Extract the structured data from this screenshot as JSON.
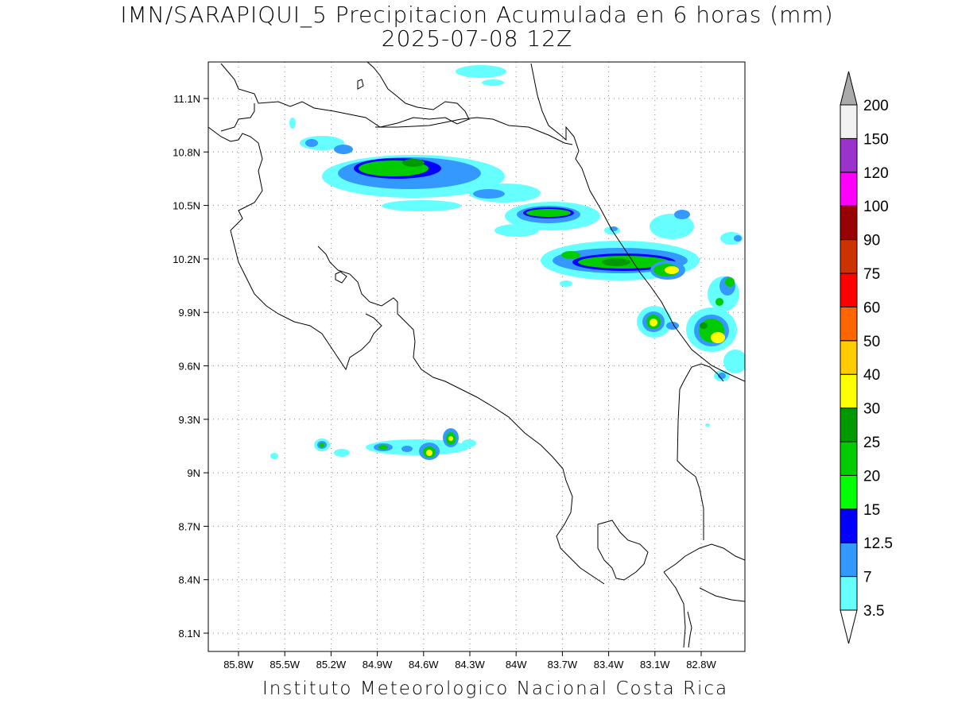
{
  "title_line1": "IMN/SARAPIQUI_5 Precipitacion Acumulada en 6 horas (mm)",
  "title_line2": "2025-07-08 12Z",
  "footer": "Instituto Meteorologico Nacional Costa Rica",
  "map": {
    "lon_range": [
      -86.0,
      -83.0
    ],
    "lat_range": [
      8.0,
      11.3
    ],
    "lon_ticks": [
      {
        "value": -85.8,
        "label": "85.8W"
      },
      {
        "value": -85.5,
        "label": "85.5W"
      },
      {
        "value": -85.2,
        "label": "85.2W"
      },
      {
        "value": -84.9,
        "label": "84.9W"
      },
      {
        "value": -84.6,
        "label": "84.6W"
      },
      {
        "value": -84.3,
        "label": "84.3W"
      },
      {
        "value": -84.0,
        "label": "84W"
      },
      {
        "value": -83.7,
        "label": "83.7W"
      },
      {
        "value": -83.4,
        "label": "83.4W"
      },
      {
        "value": -83.1,
        "label": "83.1W"
      },
      {
        "value": -82.8,
        "label": "82.8W"
      }
    ],
    "lat_ticks": [
      {
        "value": 11.1,
        "label": "11.1N"
      },
      {
        "value": 10.8,
        "label": "10.8N"
      },
      {
        "value": 10.5,
        "label": "10.5N"
      },
      {
        "value": 10.2,
        "label": "10.2N"
      },
      {
        "value": 9.9,
        "label": "9.9N"
      },
      {
        "value": 9.6,
        "label": "9.6N"
      },
      {
        "value": 9.3,
        "label": "9.3N"
      },
      {
        "value": 9.0,
        "label": "9N"
      },
      {
        "value": 8.7,
        "label": "8.7N"
      },
      {
        "value": 8.4,
        "label": "8.4N"
      },
      {
        "value": 8.1,
        "label": "8.1N"
      }
    ],
    "grid": "dotted"
  },
  "colorbar": {
    "levels": [
      {
        "label": "3.5",
        "color": "#66ffff"
      },
      {
        "label": "7",
        "color": "#3399ff"
      },
      {
        "label": "12.5",
        "color": "#0000ff"
      },
      {
        "label": "15",
        "color": "#00ff00"
      },
      {
        "label": "20",
        "color": "#00cc00"
      },
      {
        "label": "25",
        "color": "#009900"
      },
      {
        "label": "30",
        "color": "#ffff00"
      },
      {
        "label": "40",
        "color": "#ffcc00"
      },
      {
        "label": "50",
        "color": "#ff6600"
      },
      {
        "label": "60",
        "color": "#ff0000"
      },
      {
        "label": "75",
        "color": "#cc3300"
      },
      {
        "label": "90",
        "color": "#990000"
      },
      {
        "label": "100",
        "color": "#ff00ff"
      },
      {
        "label": "120",
        "color": "#9933cc"
      },
      {
        "label": "150",
        "color": "#f2f2f2"
      },
      {
        "label": "200",
        "color": "#aaaaaa"
      }
    ]
  }
}
